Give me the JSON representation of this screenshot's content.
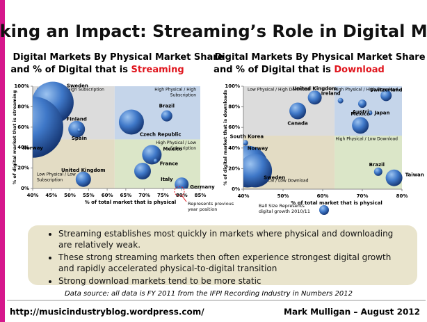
{
  "title": "Making an Impact: Streaming’s Role in Digital Music",
  "chart_data": [
    {
      "type": "bubble",
      "title_lines": [
        "Digital Markets By Physical Market Share",
        "and % of Digital that is "
      ],
      "title_highlight": "Streaming",
      "x_label": "% of total market that is physical",
      "y_label": "% of digital market that is streaming",
      "xlim": [
        40,
        85
      ],
      "xticks": [
        {
          "value": 40,
          "label": "40%"
        },
        {
          "value": 45,
          "label": "45%"
        },
        {
          "value": 50,
          "label": "50%"
        },
        {
          "value": 55,
          "label": "55%"
        },
        {
          "value": 60,
          "label": "60%"
        },
        {
          "value": 65,
          "label": "65%"
        },
        {
          "value": 70,
          "label": "70%"
        },
        {
          "value": 75,
          "label": "75%"
        },
        {
          "value": 80,
          "label": "80%"
        },
        {
          "value": 85,
          "label": "85%"
        }
      ],
      "ylim": [
        0,
        100
      ],
      "yticks": [
        {
          "value": 0,
          "label": "0%"
        },
        {
          "value": 20,
          "label": "20%"
        },
        {
          "value": 40,
          "label": "40%"
        },
        {
          "value": 60,
          "label": "60%"
        },
        {
          "value": 80,
          "label": "80%"
        },
        {
          "value": 100,
          "label": "100%"
        }
      ],
      "quadrant_split": [
        62,
        48
      ],
      "quadrants": {
        "tl": [
          "Low Physical / High Subscription"
        ],
        "tr": [
          "High Physical / High",
          "Subscription"
        ],
        "br": [
          "High Physical / Low",
          "Subscription"
        ],
        "bl": [
          "Low Physical / Low",
          "Subscription"
        ]
      },
      "points": [
        {
          "label": "Sweden",
          "x": 45.4,
          "y": 84,
          "size": 30
        },
        {
          "label": "Norway",
          "x": 40,
          "y": 60,
          "size": 44
        },
        {
          "label": "Finland",
          "x": 51.8,
          "y": 58,
          "size": 12
        },
        {
          "label": "Spain",
          "x": 52.5,
          "y": 57,
          "size": 3
        },
        {
          "label": "Czech Republic",
          "x": 66.5,
          "y": 65,
          "size": 18
        },
        {
          "label": "Brazil",
          "x": 76,
          "y": 71,
          "size": 8
        },
        {
          "label": "Mexico",
          "x": 72,
          "y": 33,
          "size": 14
        },
        {
          "label": "France",
          "x": 73,
          "y": 27,
          "size": 3
        },
        {
          "label": "Italy",
          "x": 69.5,
          "y": 17,
          "size": 12
        },
        {
          "label": "United Kingdom",
          "x": 53.6,
          "y": 9,
          "size": 11
        },
        {
          "label": "Germany",
          "x": 80,
          "y": 4,
          "size": 10
        }
      ],
      "annotation": "Represents previous year position"
    },
    {
      "type": "bubble",
      "title_lines": [
        "Digital Markets By Physical Market Share",
        "and % of Digital that is "
      ],
      "title_highlight": "Download",
      "x_label": "% of total market that is physical",
      "y_label": "% of digital market that is downloads",
      "xlim": [
        40,
        80
      ],
      "xticks": [
        {
          "value": 40,
          "label": "40%"
        },
        {
          "value": 50,
          "label": "50%"
        },
        {
          "value": 60,
          "label": "60%"
        },
        {
          "value": 70,
          "label": "70%"
        },
        {
          "value": 80,
          "label": "80%"
        }
      ],
      "ylim": [
        0,
        100
      ],
      "yticks": [
        {
          "value": 0,
          "label": "0%"
        },
        {
          "value": 20,
          "label": "20%"
        },
        {
          "value": 40,
          "label": "40%"
        },
        {
          "value": 60,
          "label": "60%"
        },
        {
          "value": 80,
          "label": "80%"
        },
        {
          "value": 100,
          "label": "100%"
        }
      ],
      "quadrant_split": [
        63,
        52
      ],
      "quadrants": {
        "tl": [
          "Low Physical / High Download"
        ],
        "tr": [
          "High Physical / High Download"
        ],
        "br": [
          "High Physical / Low Download"
        ],
        "bl": [
          "Low Physical / Low Download"
        ]
      },
      "points": [
        {
          "label": "United Kingdom",
          "x": 58,
          "y": 89,
          "size": 10
        },
        {
          "label": "Ireland",
          "x": 64.5,
          "y": 86,
          "size": 4
        },
        {
          "label": "Switzerland",
          "x": 76,
          "y": 91,
          "size": 8
        },
        {
          "label": "Austria",
          "x": 70,
          "y": 83,
          "size": 6
        },
        {
          "label": "Japan",
          "x": 72,
          "y": 74,
          "size": 3
        },
        {
          "label": "Canada",
          "x": 53.7,
          "y": 76,
          "size": 12
        },
        {
          "label": "Mexico",
          "x": 69.5,
          "y": 62,
          "size": 12
        },
        {
          "label": "South Korea",
          "x": 40.5,
          "y": 45,
          "size": 4
        },
        {
          "label": "Norway",
          "x": 41,
          "y": 22,
          "size": 30
        },
        {
          "label": "Sweden",
          "x": 43,
          "y": 18,
          "size": 24
        },
        {
          "label": "Brazil",
          "x": 74,
          "y": 17,
          "size": 6
        },
        {
          "label": "Taiwan",
          "x": 78,
          "y": 11,
          "size": 12
        }
      ],
      "annotation": "Ball Size Represents digital growth 2010/11"
    }
  ],
  "bullets": [
    "Streaming establishes most quickly in markets where physical and downloading are relatively weak.",
    "These strong streaming markets then often experience strongest digital growth and rapidly accelerated physical-to-digital transition",
    "Strong download markets tend to be more static"
  ],
  "source": "Data source: all data is FY 2011 from the IFPI Recording Industry in Numbers 2012",
  "footer_left": "http://musicindustryblog.wordpress.com/",
  "footer_right": "Mark Mulligan – August 2012"
}
